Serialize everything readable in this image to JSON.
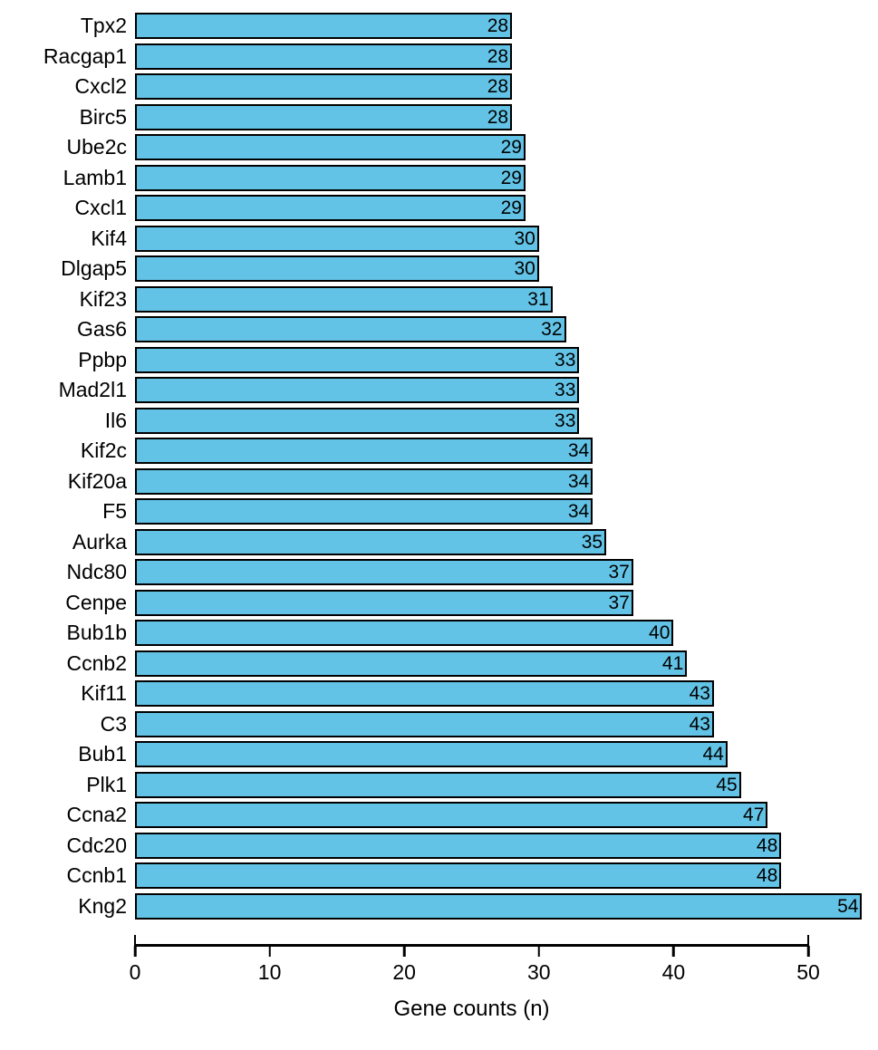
{
  "chart_data": {
    "type": "bar",
    "orientation": "horizontal",
    "title": "",
    "xlabel": "Gene counts (n)",
    "ylabel": "",
    "categories": [
      "Tpx2",
      "Racgap1",
      "Cxcl2",
      "Birc5",
      "Ube2c",
      "Lamb1",
      "Cxcl1",
      "Kif4",
      "Dlgap5",
      "Kif23",
      "Gas6",
      "Ppbp",
      "Mad2l1",
      "Il6",
      "Kif2c",
      "Kif20a",
      "F5",
      "Aurka",
      "Ndc80",
      "Cenpe",
      "Bub1b",
      "Ccnb2",
      "Kif11",
      "C3",
      "Bub1",
      "Plk1",
      "Ccna2",
      "Cdc20",
      "Ccnb1",
      "Kng2"
    ],
    "values": [
      28,
      28,
      28,
      28,
      29,
      29,
      29,
      30,
      30,
      31,
      32,
      33,
      33,
      33,
      34,
      34,
      34,
      35,
      37,
      37,
      40,
      41,
      43,
      43,
      44,
      45,
      47,
      48,
      48,
      54
    ],
    "xticks": [
      0,
      10,
      20,
      30,
      40,
      50
    ],
    "xlim": [
      0,
      54
    ],
    "grid": false,
    "value_labels": true,
    "legend": "none",
    "bar_color": "#63C3E6",
    "bar_border_color": "#000000"
  }
}
